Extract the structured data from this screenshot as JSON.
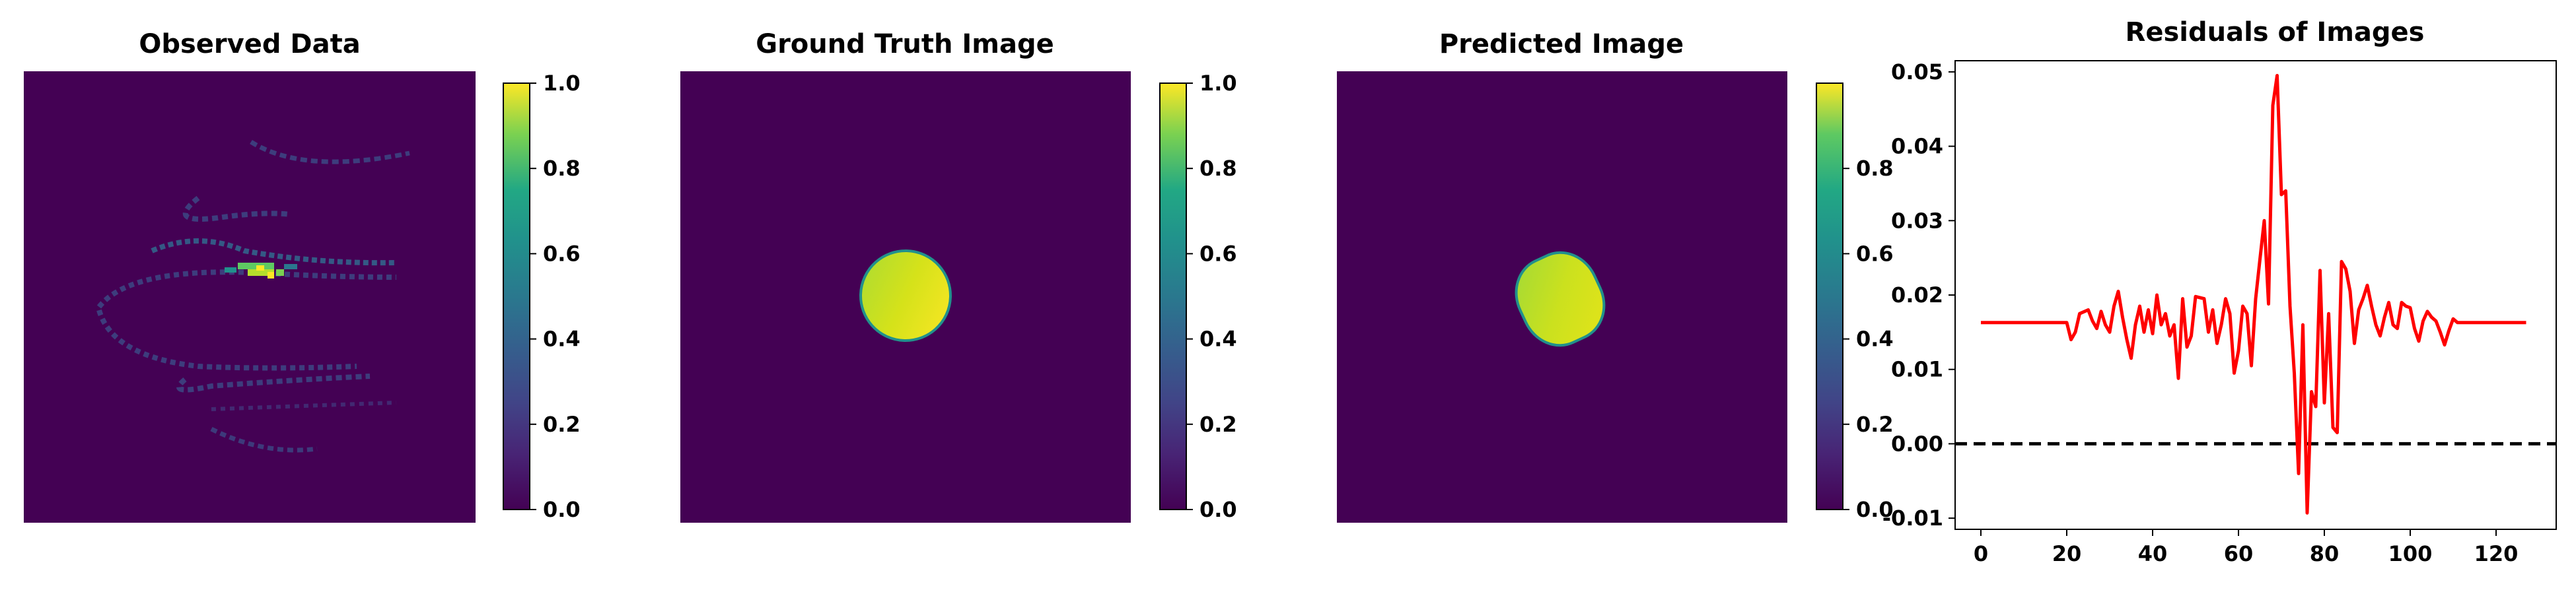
{
  "chart_data": [
    {
      "type": "heatmap",
      "title": "Observed Data",
      "colormap": "viridis",
      "colorbar": {
        "vmin": 0.0,
        "vmax": 1.0,
        "ticks": [
          "0.0",
          "0.2",
          "0.4",
          "0.6",
          "0.8",
          "1.0"
        ]
      },
      "content": "sparse helical streak pattern on dark background, brightest near center-left"
    },
    {
      "type": "heatmap",
      "title": "Ground Truth Image",
      "colormap": "viridis",
      "colorbar": {
        "vmin": 0.0,
        "vmax": 1.0,
        "ticks": [
          "0.0",
          "0.2",
          "0.4",
          "0.6",
          "0.8",
          "1.0"
        ]
      },
      "content": "single bright ellipse in center"
    },
    {
      "type": "heatmap",
      "title": "Predicted Image",
      "colormap": "viridis",
      "colorbar": {
        "vmin": 0.0,
        "vmax": 1.0,
        "ticks": [
          "0.0",
          "0.2",
          "0.4",
          "0.6",
          "0.8"
        ]
      },
      "content": "single bright rounded blob in center"
    },
    {
      "type": "line",
      "title": "Residuals of Images",
      "xlim": [
        -6,
        134
      ],
      "ylim": [
        -0.0115,
        0.0515
      ],
      "xticks": [
        "0",
        "20",
        "40",
        "60",
        "80",
        "100",
        "120"
      ],
      "yticks": [
        "-0.01",
        "0.00",
        "0.01",
        "0.02",
        "0.03",
        "0.04",
        "0.05"
      ],
      "reference_line": {
        "y": 0.0,
        "style": "dashed",
        "color": "#000000"
      },
      "series": [
        {
          "color": "#ff0000",
          "points": [
            [
              0,
              0.0163
            ],
            [
              20,
              0.0163
            ],
            [
              21,
              0.014
            ],
            [
              22,
              0.015
            ],
            [
              23,
              0.0175
            ],
            [
              25,
              0.018
            ],
            [
              26,
              0.0165
            ],
            [
              27,
              0.0155
            ],
            [
              28,
              0.0178
            ],
            [
              29,
              0.016
            ],
            [
              30,
              0.015
            ],
            [
              31,
              0.0185
            ],
            [
              32,
              0.0205
            ],
            [
              33,
              0.017
            ],
            [
              34,
              0.014
            ],
            [
              35,
              0.0115
            ],
            [
              36,
              0.016
            ],
            [
              37,
              0.0185
            ],
            [
              38,
              0.015
            ],
            [
              39,
              0.018
            ],
            [
              40,
              0.0148
            ],
            [
              41,
              0.02
            ],
            [
              42,
              0.016
            ],
            [
              43,
              0.0175
            ],
            [
              44,
              0.0145
            ],
            [
              45,
              0.016
            ],
            [
              46,
              0.0088
            ],
            [
              47,
              0.0195
            ],
            [
              48,
              0.013
            ],
            [
              49,
              0.0145
            ],
            [
              50,
              0.0198
            ],
            [
              52,
              0.0195
            ],
            [
              53,
              0.015
            ],
            [
              54,
              0.018
            ],
            [
              55,
              0.0135
            ],
            [
              56,
              0.016
            ],
            [
              57,
              0.0195
            ],
            [
              58,
              0.0175
            ],
            [
              59,
              0.0095
            ],
            [
              60,
              0.0125
            ],
            [
              61,
              0.0185
            ],
            [
              62,
              0.0175
            ],
            [
              63,
              0.0105
            ],
            [
              64,
              0.0195
            ],
            [
              65,
              0.0248
            ],
            [
              66,
              0.03
            ],
            [
              67,
              0.0188
            ],
            [
              68,
              0.0455
            ],
            [
              69,
              0.0495
            ],
            [
              70,
              0.0335
            ],
            [
              71,
              0.034
            ],
            [
              72,
              0.0185
            ],
            [
              73,
              0.0095
            ],
            [
              74,
              -0.004
            ],
            [
              75,
              0.016
            ],
            [
              76,
              -0.0093
            ],
            [
              77,
              0.007
            ],
            [
              78,
              0.005
            ],
            [
              79,
              0.0233
            ],
            [
              80,
              0.0055
            ],
            [
              81,
              0.0175
            ],
            [
              82,
              0.0022
            ],
            [
              83,
              0.0015
            ],
            [
              84,
              0.0245
            ],
            [
              85,
              0.0235
            ],
            [
              86,
              0.0205
            ],
            [
              87,
              0.0135
            ],
            [
              88,
              0.018
            ],
            [
              89,
              0.0195
            ],
            [
              90,
              0.0213
            ],
            [
              91,
              0.0185
            ],
            [
              92,
              0.016
            ],
            [
              93,
              0.0145
            ],
            [
              94,
              0.017
            ],
            [
              95,
              0.019
            ],
            [
              96,
              0.016
            ],
            [
              97,
              0.0155
            ],
            [
              98,
              0.019
            ],
            [
              99,
              0.0185
            ],
            [
              100,
              0.0183
            ],
            [
              101,
              0.0155
            ],
            [
              102,
              0.0138
            ],
            [
              103,
              0.0165
            ],
            [
              104,
              0.0178
            ],
            [
              105,
              0.017
            ],
            [
              106,
              0.0165
            ],
            [
              107,
              0.015
            ],
            [
              108,
              0.0133
            ],
            [
              109,
              0.0152
            ],
            [
              110,
              0.0168
            ],
            [
              111,
              0.0163
            ],
            [
              127,
              0.0163
            ]
          ]
        }
      ]
    }
  ]
}
